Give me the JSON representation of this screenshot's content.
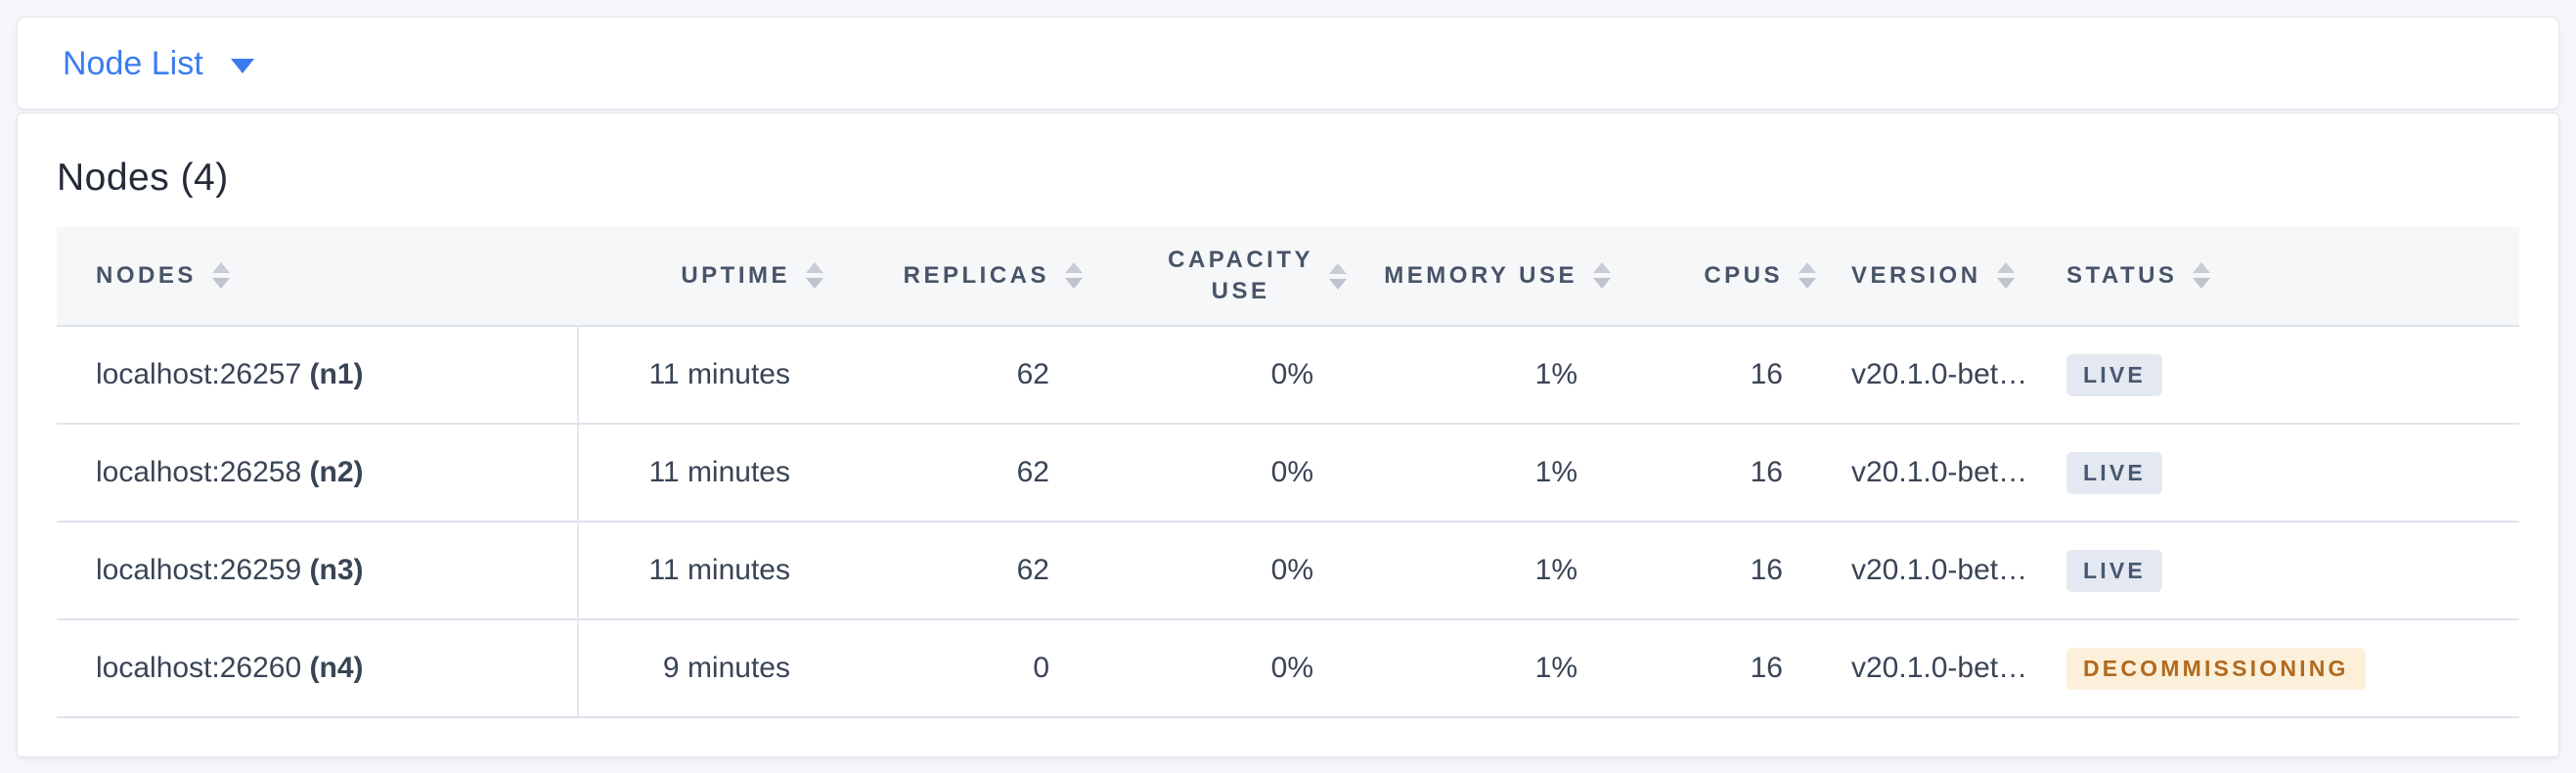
{
  "theme": {
    "page_background": "#f4f6fa",
    "accent_blue": "#3b7cf0",
    "header_text": "#475468",
    "body_text": "#394455",
    "live_badge": {
      "background": "#e4e8f0",
      "color": "#475872"
    },
    "decommissioning_badge": {
      "background": "#fcf0da",
      "color": "#b2691e"
    }
  },
  "topbar": {
    "dropdown_label": "Node List",
    "dropdown_icon": "caret-down-icon"
  },
  "main": {
    "title": "Nodes (4)",
    "table": {
      "columns": [
        {
          "field": "nodes",
          "label": "NODES",
          "align": "left",
          "sortable": true
        },
        {
          "field": "uptime",
          "label": "UPTIME",
          "align": "right",
          "sortable": true
        },
        {
          "field": "replicas",
          "label": "REPLICAS",
          "align": "right",
          "sortable": true
        },
        {
          "field": "capacity_use",
          "label": "CAPACITY USE",
          "align": "right",
          "sortable": true,
          "wrap": true
        },
        {
          "field": "memory_use",
          "label": "MEMORY USE",
          "align": "right",
          "sortable": true
        },
        {
          "field": "cpus",
          "label": "CPUS",
          "align": "right",
          "sortable": true
        },
        {
          "field": "version",
          "label": "VERSION",
          "align": "left",
          "sortable": true
        },
        {
          "field": "status",
          "label": "STATUS",
          "align": "left",
          "sortable": true
        }
      ],
      "rows": [
        {
          "nodes_address": "localhost:26257",
          "nodes_id": "(n1)",
          "uptime": "11 minutes",
          "replicas": "62",
          "capacity_use": "0%",
          "memory_use": "1%",
          "cpus": "16",
          "version": "v20.1.0-bet…",
          "status": "LIVE",
          "status_type": "live"
        },
        {
          "nodes_address": "localhost:26258",
          "nodes_id": "(n2)",
          "uptime": "11 minutes",
          "replicas": "62",
          "capacity_use": "0%",
          "memory_use": "1%",
          "cpus": "16",
          "version": "v20.1.0-bet…",
          "status": "LIVE",
          "status_type": "live"
        },
        {
          "nodes_address": "localhost:26259",
          "nodes_id": "(n3)",
          "uptime": "11 minutes",
          "replicas": "62",
          "capacity_use": "0%",
          "memory_use": "1%",
          "cpus": "16",
          "version": "v20.1.0-bet…",
          "status": "LIVE",
          "status_type": "live"
        },
        {
          "nodes_address": "localhost:26260",
          "nodes_id": "(n4)",
          "uptime": "9 minutes",
          "replicas": "0",
          "capacity_use": "0%",
          "memory_use": "1%",
          "cpus": "16",
          "version": "v20.1.0-bet…",
          "status": "DECOMMISSIONING",
          "status_type": "decommissioning"
        }
      ]
    }
  }
}
